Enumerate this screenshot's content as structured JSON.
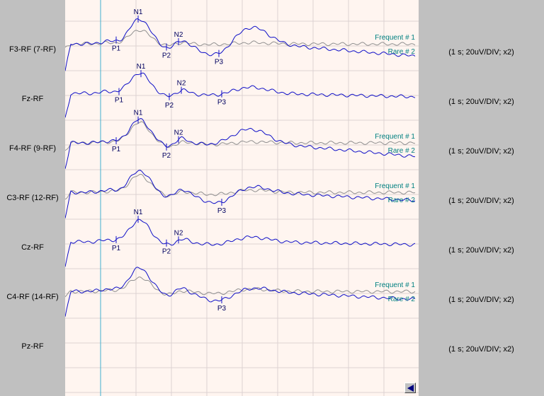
{
  "chart_data": {
    "type": "line",
    "channels": [
      {
        "label": "F3-RF (7-RF)",
        "scale": "(1 s; 20uV/DIV; x2)",
        "gray_label": "Frequent # 1",
        "blue_label": "Rare # 2",
        "peaks": [
          {
            "n": "P1",
            "pos": "below"
          },
          {
            "n": "N1",
            "pos": "above"
          },
          {
            "n": "P2",
            "pos": "below"
          },
          {
            "n": "N2",
            "pos": "above"
          },
          {
            "n": "P3",
            "pos": "below"
          }
        ]
      },
      {
        "label": "Fz-RF",
        "scale": "(1 s; 20uV/DIV; x2)",
        "gray_label": "",
        "blue_label": "",
        "peaks": [
          {
            "n": "P1",
            "pos": "below"
          },
          {
            "n": "N1",
            "pos": "above"
          },
          {
            "n": "P2",
            "pos": "below"
          },
          {
            "n": "N2",
            "pos": "above"
          },
          {
            "n": "P3",
            "pos": "below"
          }
        ]
      },
      {
        "label": "F4-RF (9-RF)",
        "scale": "(1 s; 20uV/DIV; x2)",
        "gray_label": "Frequent # 1",
        "blue_label": "Rare # 2",
        "peaks": [
          {
            "n": "P1",
            "pos": "below"
          },
          {
            "n": "N1",
            "pos": "above"
          },
          {
            "n": "P2",
            "pos": "below"
          },
          {
            "n": "N2",
            "pos": "above"
          }
        ]
      },
      {
        "label": "C3-RF (12-RF)",
        "scale": "(1 s; 20uV/DIV; x2)",
        "gray_label": "Frequent # 1",
        "blue_label": "Rare # 2",
        "peaks": [
          {
            "n": "P3",
            "pos": "below"
          }
        ]
      },
      {
        "label": "Cz-RF",
        "scale": "(1 s; 20uV/DIV; x2)",
        "gray_label": "",
        "blue_label": "",
        "peaks": [
          {
            "n": "N1",
            "pos": "above"
          },
          {
            "n": "P1",
            "pos": "below"
          },
          {
            "n": "P2",
            "pos": "below"
          },
          {
            "n": "N2",
            "pos": "above"
          }
        ]
      },
      {
        "label": "C4-RF (14-RF)",
        "scale": "(1 s; 20uV/DIV; x2)",
        "gray_label": "Frequent # 1",
        "blue_label": "Rare # 2",
        "peaks": [
          {
            "n": "P3",
            "pos": "below"
          }
        ]
      },
      {
        "label": "Pz-RF",
        "scale": "(1 s; 20uV/DIV; x2)",
        "gray_label": "",
        "blue_label": "",
        "peaks": []
      }
    ],
    "grid": true,
    "colors": {
      "plot_bg": "#fff5f0",
      "grid": "#dcd2d2",
      "gray_trace": "#909090",
      "blue_trace": "#1010c8",
      "trace_label": "#008080",
      "stimulus_marker": "#40b0d0",
      "peak_text": "#000060"
    }
  },
  "nav": {
    "back_icon": "left-triangle-icon"
  }
}
